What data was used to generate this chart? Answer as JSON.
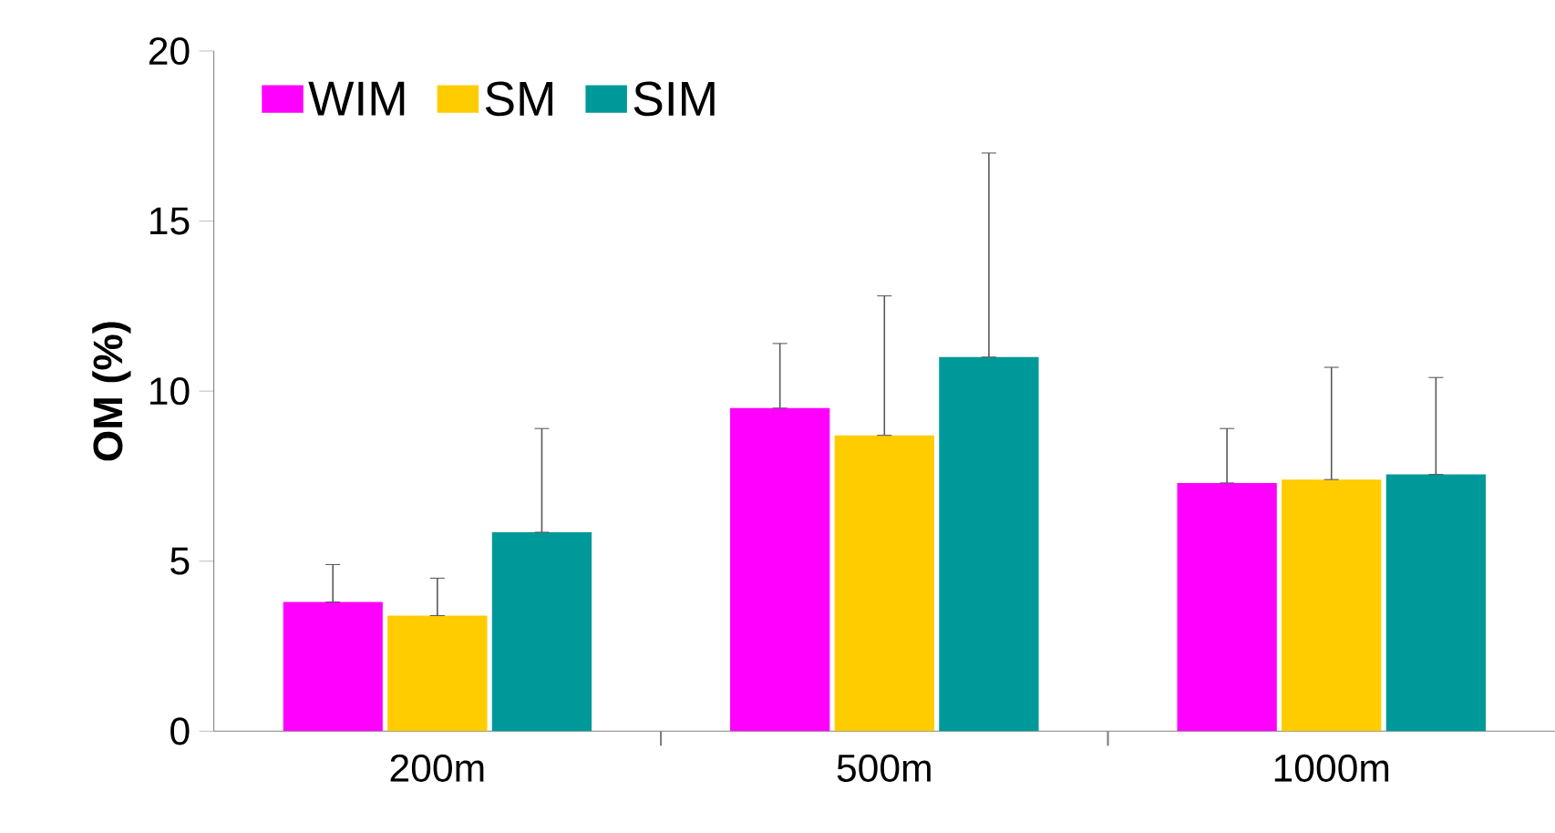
{
  "chart_data": {
    "type": "bar",
    "ylabel": "OM (%)",
    "categories": [
      "200m",
      "500m",
      "1000m"
    ],
    "series": [
      {
        "name": "WIM",
        "color": "#ff00ff",
        "values": [
          3.8,
          9.5,
          7.3
        ],
        "errors": [
          [
            3.8,
            4.9
          ],
          [
            9.5,
            11.4
          ],
          [
            7.3,
            8.9
          ]
        ]
      },
      {
        "name": "SM",
        "color": "#ffcc00",
        "values": [
          3.4,
          8.7,
          7.4
        ],
        "errors": [
          [
            3.4,
            4.5
          ],
          [
            8.7,
            12.8
          ],
          [
            7.4,
            10.7
          ]
        ]
      },
      {
        "name": "SIM",
        "color": "#009999",
        "values": [
          5.85,
          11.0,
          7.55
        ],
        "errors": [
          [
            5.85,
            8.9
          ],
          [
            11.0,
            17.0
          ],
          [
            7.55,
            10.4
          ]
        ]
      }
    ],
    "ylim": [
      0,
      20
    ],
    "yticks": [
      0,
      5,
      10,
      15,
      20
    ],
    "grid": false,
    "legend": "top left"
  }
}
